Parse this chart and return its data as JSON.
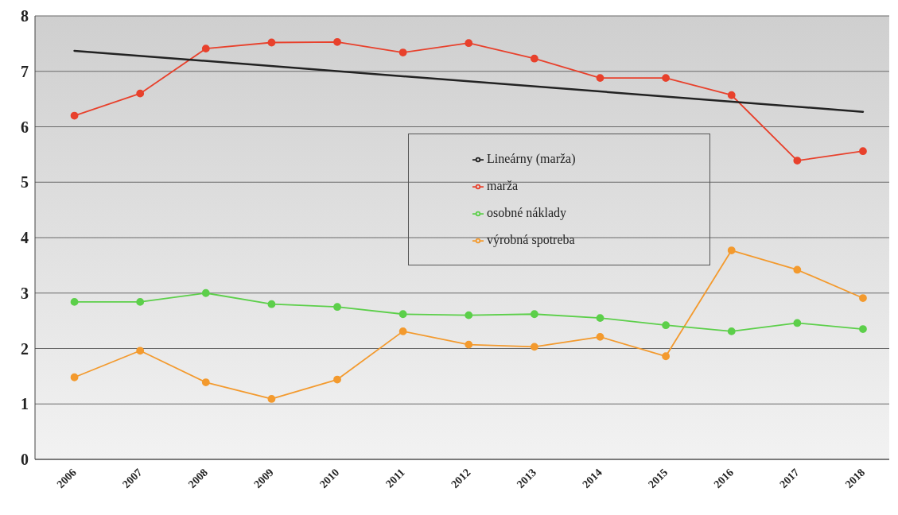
{
  "chart_data": {
    "type": "line",
    "x": [
      2006,
      2007,
      2008,
      2009,
      2010,
      2011,
      2012,
      2013,
      2014,
      2015,
      2016,
      2017,
      2018
    ],
    "xlim": [
      2005.4,
      2018.4
    ],
    "xticks": [
      2006,
      2007,
      2008,
      2009,
      2010,
      2011,
      2012,
      2013,
      2014,
      2015,
      2016,
      2017,
      2018
    ],
    "ylim": [
      0,
      8
    ],
    "yticks": [
      0,
      1,
      2,
      3,
      4,
      5,
      6,
      7,
      8
    ],
    "grid": "y",
    "legend": "center",
    "marker": "circle",
    "line_style": "solid",
    "series": [
      {
        "name": "marža",
        "color": "#e8412c",
        "values": [
          6.2,
          6.6,
          7.41,
          7.52,
          7.53,
          7.34,
          7.51,
          7.23,
          6.88,
          6.88,
          6.57,
          5.39,
          5.56
        ]
      },
      {
        "name": "výrobná spotreba",
        "color": "#f39a2e",
        "values": [
          1.48,
          1.96,
          1.39,
          1.09,
          1.44,
          2.31,
          2.07,
          2.03,
          2.21,
          1.86,
          3.77,
          3.42,
          2.91
        ]
      },
      {
        "name": "osobné náklady",
        "color": "#5ccf4a",
        "values": [
          2.84,
          2.84,
          3.0,
          2.8,
          2.75,
          2.62,
          2.6,
          2.62,
          2.55,
          2.42,
          2.31,
          2.46,
          2.35
        ]
      },
      {
        "name": "Lineárny (marža)",
        "type": "line",
        "marker": "none",
        "color": "#222222",
        "x": [
          2006,
          2018
        ],
        "values": [
          7.37,
          6.27
        ]
      }
    ]
  }
}
